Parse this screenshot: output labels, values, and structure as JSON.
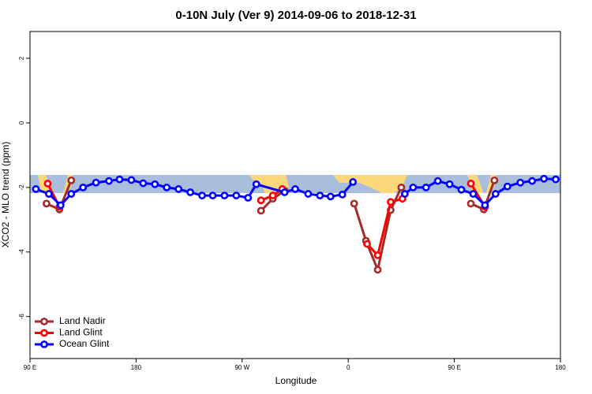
{
  "chart_data": {
    "type": "line",
    "title": "0-10N July (Ver 9)   2014-09-06 to 2018-12-31",
    "xlabel": "Longitude",
    "ylabel": "XCO2 - MLO trend (ppm)",
    "xlim": [
      90,
      540
    ],
    "ylim": [
      -7.3,
      2.83
    ],
    "xticks": [
      {
        "value": 90,
        "label": "90 E"
      },
      180,
      {
        "value": 270,
        "label": "90 W"
      },
      {
        "value": 360,
        "label": "0"
      },
      {
        "value": 450,
        "label": "90 E"
      },
      {
        "value": 540,
        "label": "180"
      }
    ],
    "yticks": [
      -6,
      -4,
      -2,
      0,
      2
    ],
    "legend": "bottom-left",
    "series": [
      {
        "name": "Land Nadir",
        "color": "#a52a2a",
        "x": [
          104,
          115,
          125,
          null,
          286,
          296,
          306,
          null,
          365,
          375,
          385,
          396,
          405,
          null,
          464,
          475,
          484
        ],
        "values": [
          -2.5,
          -2.68,
          -1.78,
          null,
          -2.72,
          -2.35,
          -2.1,
          null,
          -2.5,
          -3.65,
          -4.55,
          -2.7,
          -2.0,
          null,
          -2.5,
          -2.68,
          -1.78
        ]
      },
      {
        "name": "Land Glint",
        "color": "#ff0000",
        "x": [
          105,
          115,
          null,
          286,
          296,
          304,
          null,
          376,
          385,
          396,
          406,
          null,
          464,
          476
        ],
        "values": [
          -1.88,
          -2.6,
          null,
          -2.4,
          -2.25,
          -2.05,
          null,
          -3.75,
          -4.1,
          -2.45,
          -2.35,
          null,
          -1.88,
          -2.6
        ]
      },
      {
        "name": "Ocean Glint",
        "color": "#0000ff",
        "x": [
          95,
          106,
          116,
          125,
          135,
          146,
          157,
          166,
          176,
          186,
          196,
          206,
          216,
          226,
          236,
          245,
          255,
          265,
          275,
          282,
          306,
          315,
          326,
          336,
          345,
          355,
          364,
          null,
          408,
          415,
          426,
          436,
          446,
          456,
          466,
          476,
          485,
          495,
          506,
          516,
          526,
          536
        ],
        "values": [
          -2.05,
          -2.2,
          -2.55,
          -2.2,
          -2.0,
          -1.85,
          -1.8,
          -1.75,
          -1.77,
          -1.87,
          -1.9,
          -2.0,
          -2.05,
          -2.15,
          -2.25,
          -2.25,
          -2.25,
          -2.25,
          -2.32,
          -1.9,
          -2.15,
          -2.05,
          -2.2,
          -2.25,
          -2.28,
          -2.22,
          -1.83,
          null,
          -2.2,
          -2.0,
          -2.0,
          -1.8,
          -1.9,
          -2.07,
          -2.2,
          -2.55,
          -2.2,
          -1.97,
          -1.85,
          -1.8,
          -1.73,
          -1.75
        ]
      }
    ]
  }
}
